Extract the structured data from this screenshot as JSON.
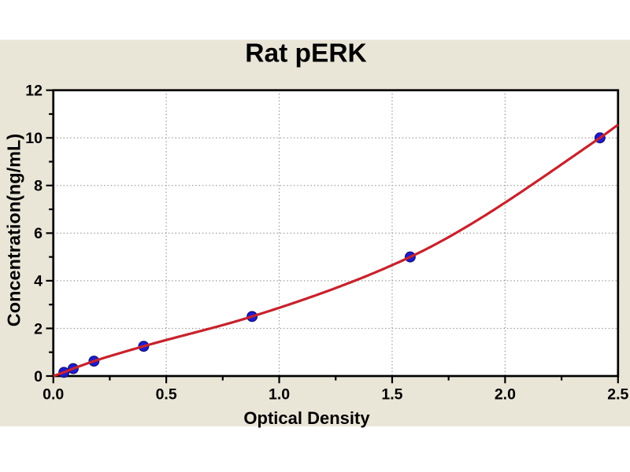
{
  "chart_data": {
    "type": "scatter",
    "title": "Rat pERK",
    "xlabel": "Optical Density",
    "ylabel": "Concentration(ng/mL)",
    "xlim": [
      0,
      2.5
    ],
    "ylim": [
      0,
      12
    ],
    "x_major_ticks": [
      0,
      0.5,
      1.0,
      1.5,
      2.0,
      2.5
    ],
    "x_tick_labels": [
      "0.0",
      "0.5",
      "1.0",
      "1.5",
      "2.0",
      "2.5"
    ],
    "x_minor_ticks": [
      0.25,
      0.75,
      1.25,
      1.75,
      2.25
    ],
    "y_major_ticks": [
      0,
      2,
      4,
      6,
      8,
      10,
      12
    ],
    "y_tick_labels": [
      "0",
      "2",
      "4",
      "6",
      "8",
      "10",
      "12"
    ],
    "y_minor_ticks": [
      1,
      3,
      5,
      7,
      9,
      11
    ],
    "grid": "dotted gridlines at major ticks only",
    "legend_position": "none",
    "series": [
      {
        "name": "standard-points",
        "marker": "filled-circle",
        "points": [
          {
            "x": 0.047,
            "y": 0.156
          },
          {
            "x": 0.088,
            "y": 0.312
          },
          {
            "x": 0.18,
            "y": 0.625
          },
          {
            "x": 0.4,
            "y": 1.25
          },
          {
            "x": 0.88,
            "y": 2.5
          },
          {
            "x": 1.58,
            "y": 5.0
          },
          {
            "x": 2.42,
            "y": 10.0
          }
        ]
      },
      {
        "name": "fitted-curve",
        "type": "smooth-curve-through-points",
        "points": [
          {
            "x": 0.0,
            "y": 0.0
          },
          {
            "x": 0.047,
            "y": 0.156
          },
          {
            "x": 0.088,
            "y": 0.312
          },
          {
            "x": 0.18,
            "y": 0.625
          },
          {
            "x": 0.4,
            "y": 1.25
          },
          {
            "x": 0.88,
            "y": 2.5
          },
          {
            "x": 1.58,
            "y": 5.0
          },
          {
            "x": 2.42,
            "y": 10.0
          },
          {
            "x": 2.5,
            "y": 10.55
          }
        ]
      }
    ],
    "colors": {
      "page_background": "#ffffff",
      "chart_background": "#e9e6d8",
      "plot_background": "#ffffff",
      "curve": "#c8222c",
      "marker_fill": "#1e1acf",
      "marker_edge": "#10106e",
      "grid": "#999999",
      "axis": "#000000",
      "text": "#000000"
    }
  }
}
